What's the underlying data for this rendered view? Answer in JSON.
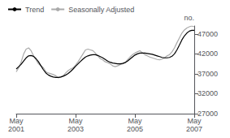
{
  "chart_data": {
    "type": "line",
    "ylabel": "no.",
    "categories": [
      "May\n2001",
      null,
      null,
      null,
      null,
      null,
      null,
      null,
      null,
      null,
      null,
      null,
      null,
      null,
      null,
      null,
      null,
      null,
      null,
      null,
      null,
      null,
      null,
      null,
      "May\n2003",
      null,
      null,
      null,
      null,
      null,
      null,
      null,
      null,
      null,
      null,
      null,
      null,
      null,
      null,
      null,
      null,
      null,
      null,
      null,
      null,
      null,
      null,
      null,
      "May\n2005",
      null,
      null,
      null,
      null,
      null,
      null,
      null,
      null,
      null,
      null,
      null,
      null,
      null,
      null,
      null,
      null,
      null,
      null,
      null,
      null,
      null,
      null,
      null,
      "May\n2007"
    ],
    "series": [
      {
        "name": "Trend",
        "color": "#000000",
        "values": [
          38200,
          38800,
          39400,
          40200,
          41000,
          41500,
          41600,
          41400,
          40800,
          40000,
          39000,
          38000,
          37200,
          36700,
          36400,
          36200,
          36100,
          36100,
          36200,
          36400,
          36700,
          37100,
          37600,
          38200,
          38900,
          39500,
          40100,
          40700,
          41200,
          41500,
          41700,
          41800,
          41800,
          41600,
          41300,
          41000,
          40600,
          40200,
          39900,
          39700,
          39600,
          39500,
          39500,
          39600,
          39800,
          40200,
          40700,
          41200,
          41700,
          42000,
          42200,
          42200,
          42200,
          42100,
          42000,
          41900,
          41700,
          41500,
          41300,
          41100,
          41000,
          41000,
          41100,
          41400,
          42000,
          43000,
          44200,
          45500,
          46500,
          47200,
          47700,
          47900,
          47900
        ]
      },
      {
        "name": "Seasonally Adjusted",
        "color": "#aaaaaa",
        "values": [
          37500,
          38500,
          40000,
          42000,
          43200,
          43500,
          42800,
          41500,
          40500,
          39500,
          39000,
          38500,
          37500,
          37200,
          37000,
          36800,
          36500,
          36000,
          36200,
          36500,
          37200,
          37800,
          38200,
          38500,
          39200,
          40000,
          41000,
          42000,
          43000,
          43200,
          43000,
          42800,
          42200,
          41500,
          40800,
          40500,
          40000,
          39800,
          39500,
          39000,
          38800,
          39000,
          39300,
          39500,
          39800,
          40500,
          41200,
          41800,
          42200,
          42500,
          42800,
          42300,
          41800,
          41500,
          41200,
          41000,
          40800,
          40600,
          40500,
          40700,
          41000,
          41500,
          41800,
          42500,
          43500,
          44800,
          46000,
          47200,
          48000,
          48500,
          48800,
          49000,
          48800
        ]
      }
    ],
    "ylim": [
      27000,
      49000
    ],
    "yticks": [
      27000,
      32000,
      37000,
      42000,
      47000
    ],
    "legend": "upper left",
    "grid": false
  }
}
